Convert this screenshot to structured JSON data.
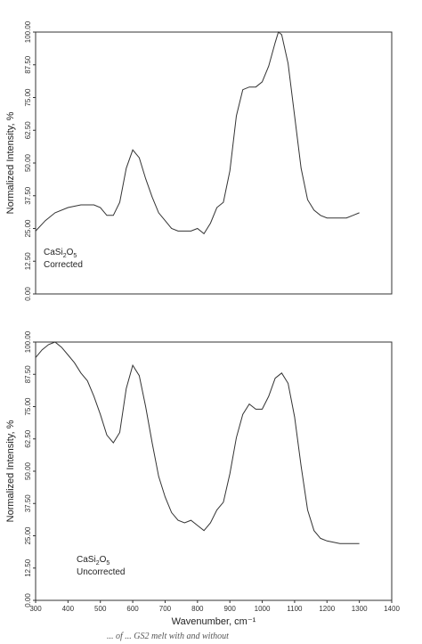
{
  "chart_data": [
    {
      "type": "line",
      "panel": "top",
      "title": "",
      "ylabel": "Normalized Intensity, %",
      "xlabel": "",
      "xlim": [
        300,
        1400
      ],
      "ylim": [
        0,
        100
      ],
      "yticks": [
        "0.00",
        "12.50",
        "25.00",
        "37.50",
        "50.00",
        "62.50",
        "75.00",
        "87.50",
        "100.00"
      ],
      "label_line1": "CaSi",
      "label_sub1": "2",
      "label_mid": "O",
      "label_sub2": "5",
      "label_line2": "Corrected",
      "grid": false,
      "series": [
        {
          "x": [
            300,
            330,
            360,
            400,
            440,
            480,
            500,
            520,
            540,
            560,
            580,
            600,
            620,
            640,
            660,
            680,
            700,
            720,
            740,
            760,
            780,
            800,
            820,
            840,
            860,
            880,
            900,
            920,
            940,
            960,
            980,
            1000,
            1020,
            1040,
            1050,
            1060,
            1080,
            1100,
            1120,
            1140,
            1160,
            1180,
            1200,
            1220,
            1240,
            1260,
            1280,
            1300
          ],
          "y": [
            24,
            28,
            31,
            33,
            34,
            34,
            33,
            30,
            30,
            35,
            48,
            55,
            52,
            44,
            37,
            31,
            28,
            25,
            24,
            24,
            24,
            25,
            23,
            27,
            33,
            35,
            47,
            68,
            78,
            79,
            79,
            81,
            87,
            96,
            100,
            99,
            88,
            68,
            48,
            36,
            32,
            30,
            29,
            29,
            29,
            29,
            30,
            31
          ]
        }
      ]
    },
    {
      "type": "line",
      "panel": "bottom",
      "title": "",
      "ylabel": "Normalized Intensity, %",
      "xlabel": "Wavenumber, cm⁻¹",
      "xlim": [
        300,
        1400
      ],
      "ylim": [
        0,
        100
      ],
      "xticks": [
        "300",
        "400",
        "500",
        "600",
        "700",
        "800",
        "900",
        "1000",
        "1100",
        "1200",
        "1300",
        "1400"
      ],
      "yticks": [
        "0.00",
        "12.50",
        "25.00",
        "37.50",
        "50.00",
        "62.50",
        "75.00",
        "87.50",
        "100.00"
      ],
      "label_line1": "CaSi",
      "label_sub1": "2",
      "label_mid": "O",
      "label_sub2": "5",
      "label_line2": "Uncorrected",
      "grid": false,
      "series": [
        {
          "x": [
            300,
            320,
            340,
            360,
            380,
            400,
            420,
            440,
            460,
            480,
            500,
            520,
            540,
            560,
            580,
            600,
            620,
            640,
            660,
            680,
            700,
            720,
            740,
            760,
            780,
            800,
            820,
            840,
            860,
            880,
            900,
            920,
            940,
            960,
            980,
            1000,
            1020,
            1040,
            1060,
            1080,
            1100,
            1120,
            1140,
            1160,
            1180,
            1200,
            1240,
            1300
          ],
          "y": [
            94,
            97,
            99,
            100,
            98,
            95,
            92,
            88,
            85,
            79,
            72,
            64,
            61,
            65,
            82,
            91,
            87,
            75,
            61,
            48,
            40,
            34,
            31,
            30,
            31,
            29,
            27,
            30,
            35,
            38,
            49,
            63,
            72,
            76,
            74,
            74,
            79,
            86,
            88,
            84,
            71,
            52,
            35,
            27,
            24,
            23,
            22,
            22
          ]
        }
      ]
    }
  ],
  "caption": "... of ... GS2 melt with and without"
}
